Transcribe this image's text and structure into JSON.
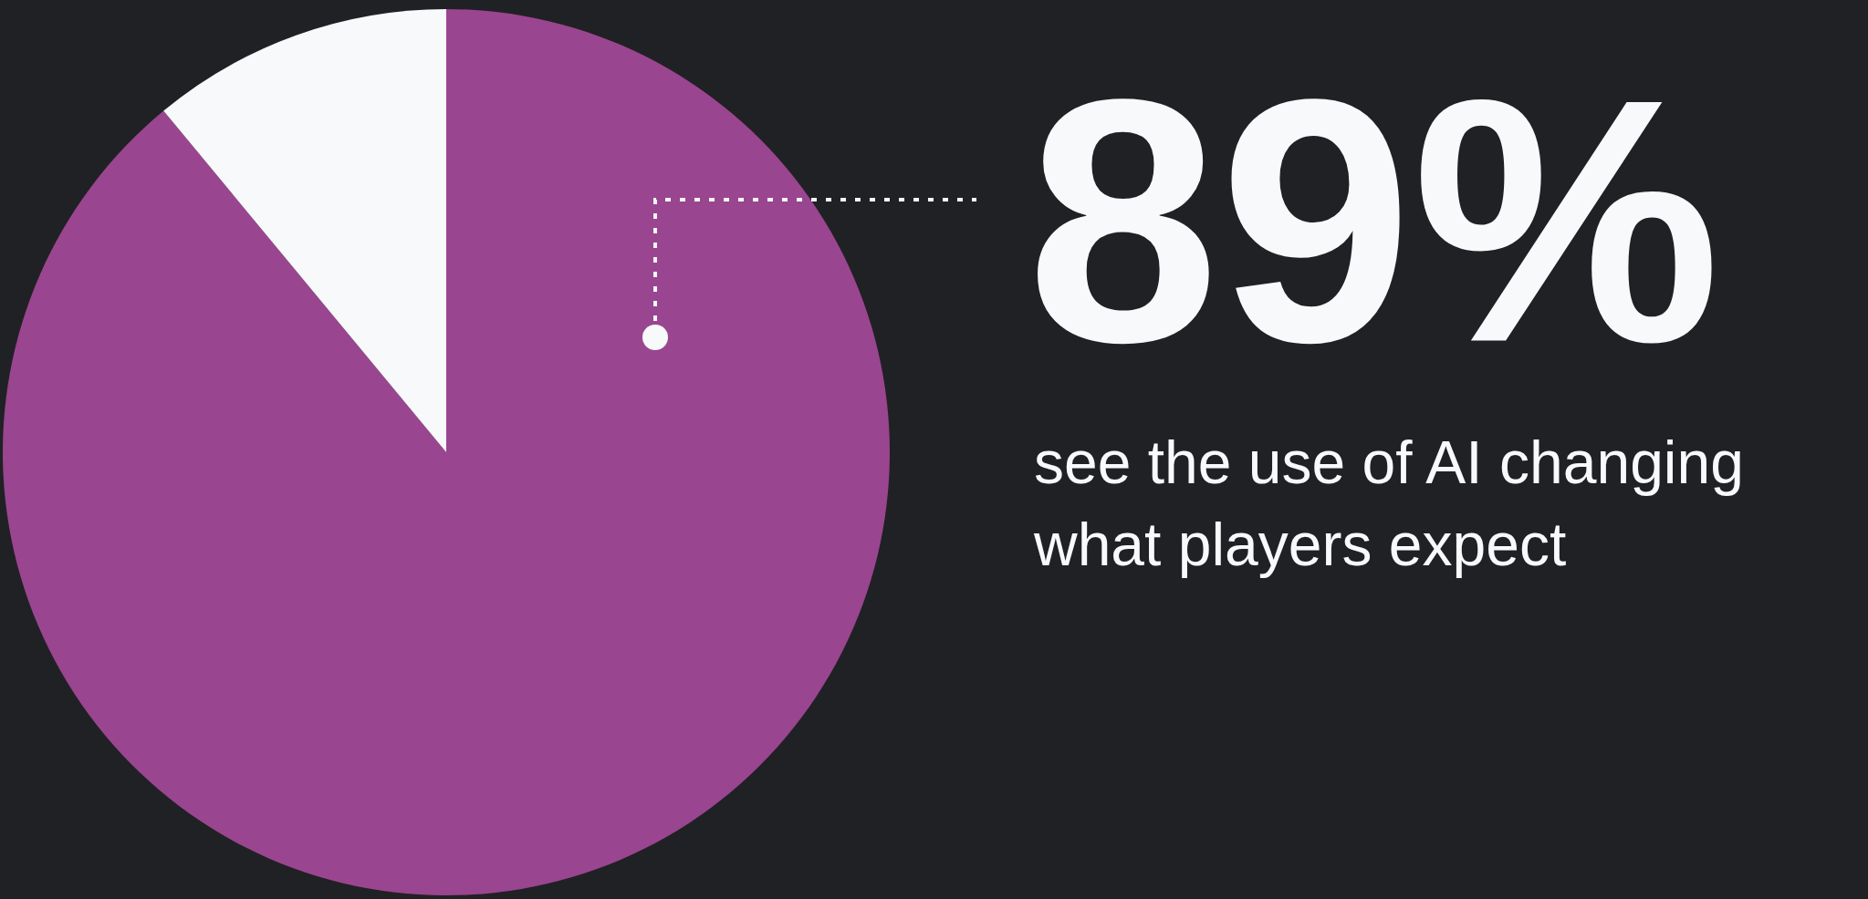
{
  "chart_data": {
    "type": "pie",
    "categories": [
      null,
      null
    ],
    "values": [
      89,
      11
    ],
    "colors": [
      "#9a4590",
      "#f8f9fb"
    ],
    "value_labels": [
      "89%",
      null
    ],
    "annotations": [
      "see the use of AI changing what players expect"
    ],
    "legend": false
  }
}
